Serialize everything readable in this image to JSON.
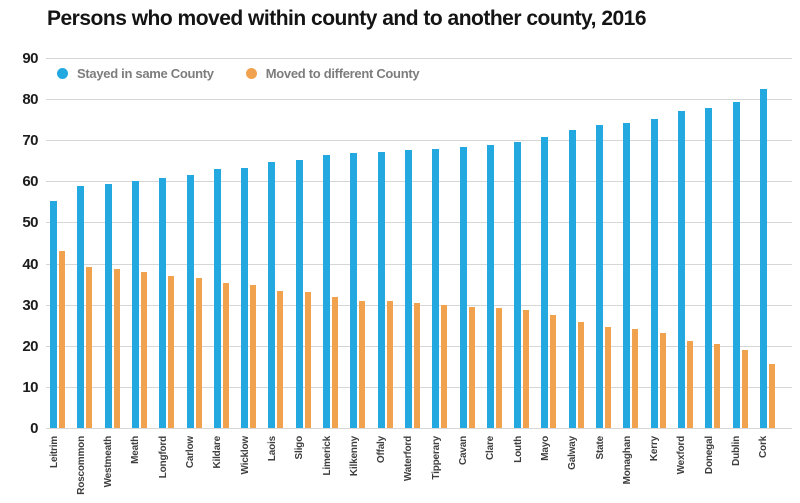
{
  "title": "Persons who moved within county and to another county, 2016",
  "colors": {
    "stayed_blue": "#23a8df",
    "moved_orange": "#f0a24e",
    "grid": "#d6d6d6",
    "title_text": "#141414",
    "axis_text": "#1c1c1c",
    "legend_text": "#7d7d7d",
    "background": "#ffffff"
  },
  "chart_data": {
    "type": "bar",
    "title": "Persons who moved within county and to another county, 2016",
    "categories": [
      "Leitrim",
      "Roscommon",
      "Westmeath",
      "Meath",
      "Longford",
      "Carlow",
      "Kildare",
      "Wicklow",
      "Laois",
      "Sligo",
      "Limerick",
      "Kilkenny",
      "Offaly",
      "Waterford",
      "Tipperary",
      "Cavan",
      "Clare",
      "Louth",
      "Mayo",
      "Galway",
      "State",
      "Monaghan",
      "Kerry",
      "Wexford",
      "Donegal",
      "Dublin",
      "Cork"
    ],
    "series": [
      {
        "name": "Stayed in same County",
        "color": "#23a8df",
        "values": [
          55.2,
          58.8,
          59.3,
          60.2,
          60.8,
          61.5,
          63.0,
          63.3,
          64.6,
          65.1,
          66.3,
          67.0,
          67.2,
          67.6,
          67.9,
          68.4,
          68.9,
          69.5,
          70.8,
          72.5,
          73.7,
          74.3,
          75.1,
          77.1,
          77.8,
          79.4,
          82.5
        ]
      },
      {
        "name": "Moved to different County",
        "color": "#f0a24e",
        "values": [
          43.1,
          39.2,
          38.6,
          38.0,
          37.0,
          36.6,
          35.2,
          34.8,
          33.3,
          33.1,
          31.8,
          31.0,
          30.9,
          30.4,
          30.0,
          29.5,
          29.2,
          28.7,
          27.4,
          25.9,
          24.6,
          24.0,
          23.1,
          21.1,
          20.4,
          18.9,
          15.5
        ]
      }
    ],
    "xlabel": "",
    "ylabel": "",
    "ylim": [
      0,
      90
    ],
    "yticks": [
      0,
      10,
      20,
      30,
      40,
      50,
      60,
      70,
      80,
      90
    ],
    "grid": true,
    "legend_position": "top-left",
    "x_tick_rotation": -90
  }
}
